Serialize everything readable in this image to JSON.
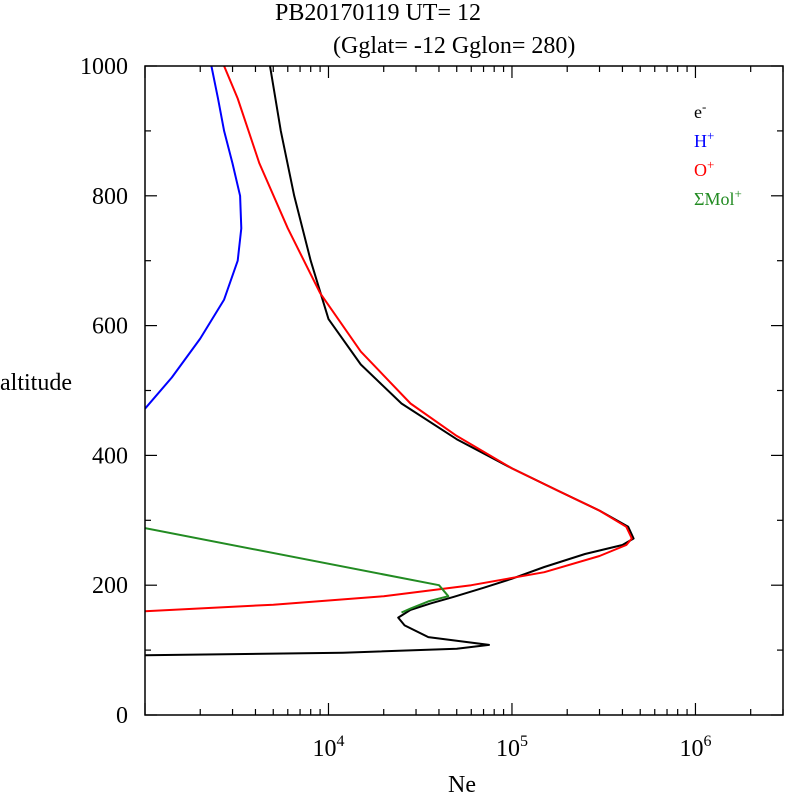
{
  "chart_data": {
    "type": "line",
    "title": "PB20170119   UT=  12",
    "subtitle": "(Gglat= -12   Gglon=  280)",
    "xlabel": "Ne",
    "ylabel": "altitude",
    "xscale": "log",
    "xlim": [
      1000,
      3000000
    ],
    "ylim": [
      0,
      1000
    ],
    "x_tick_labels": [
      {
        "base": "10",
        "exp": "4",
        "value": 10000
      },
      {
        "base": "10",
        "exp": "5",
        "value": 100000
      },
      {
        "base": "10",
        "exp": "6",
        "value": 1000000
      }
    ],
    "y_ticks": [
      0,
      200,
      400,
      600,
      800,
      1000
    ],
    "y_tick_labels": [
      "0",
      "200",
      "400",
      "600",
      "800",
      "1000"
    ],
    "grid": false,
    "legend_position": "top-right",
    "series": [
      {
        "name": "e-",
        "legend_base": "e",
        "legend_sup": "-",
        "color": "#000000",
        "points": [
          [
            1000,
            92
          ],
          [
            12000,
            96
          ],
          [
            50000,
            102
          ],
          [
            75000,
            108
          ],
          [
            35000,
            120
          ],
          [
            26000,
            138
          ],
          [
            24000,
            150
          ],
          [
            28000,
            162
          ],
          [
            36000,
            172
          ],
          [
            48000,
            182
          ],
          [
            70000,
            196
          ],
          [
            100000,
            210
          ],
          [
            150000,
            228
          ],
          [
            250000,
            248
          ],
          [
            400000,
            262
          ],
          [
            460000,
            272
          ],
          [
            430000,
            290
          ],
          [
            300000,
            315
          ],
          [
            180000,
            345
          ],
          [
            100000,
            380
          ],
          [
            50000,
            425
          ],
          [
            25000,
            480
          ],
          [
            15000,
            540
          ],
          [
            10000,
            610
          ],
          [
            8000,
            700
          ],
          [
            6500,
            800
          ],
          [
            5500,
            900
          ],
          [
            4800,
            1000
          ]
        ]
      },
      {
        "name": "H+",
        "legend_base": "H",
        "legend_sup": "+",
        "color": "#0000ff",
        "points": [
          [
            1000,
            472
          ],
          [
            1400,
            520
          ],
          [
            2000,
            580
          ],
          [
            2700,
            640
          ],
          [
            3200,
            700
          ],
          [
            3350,
            750
          ],
          [
            3300,
            800
          ],
          [
            3000,
            850
          ],
          [
            2700,
            900
          ],
          [
            2500,
            950
          ],
          [
            2300,
            1000
          ]
        ]
      },
      {
        "name": "O+",
        "legend_base": "O",
        "legend_sup": "+",
        "color": "#ff0000",
        "points": [
          [
            1000,
            160
          ],
          [
            5000,
            170
          ],
          [
            20000,
            183
          ],
          [
            60000,
            200
          ],
          [
            150000,
            220
          ],
          [
            300000,
            245
          ],
          [
            420000,
            262
          ],
          [
            450000,
            272
          ],
          [
            420000,
            290
          ],
          [
            300000,
            315
          ],
          [
            180000,
            345
          ],
          [
            100000,
            380
          ],
          [
            50000,
            430
          ],
          [
            28000,
            480
          ],
          [
            15000,
            560
          ],
          [
            9000,
            650
          ],
          [
            6000,
            750
          ],
          [
            4200,
            850
          ],
          [
            3200,
            950
          ],
          [
            2700,
            1000
          ]
        ]
      },
      {
        "name": "ΣMol+",
        "legend_base": "ΣMol",
        "legend_sup": "+",
        "color": "#228b22",
        "points": [
          [
            1000,
            288
          ],
          [
            40000,
            200
          ],
          [
            45000,
            183
          ],
          [
            35000,
            175
          ],
          [
            28000,
            164
          ],
          [
            25000,
            158
          ]
        ]
      }
    ]
  }
}
